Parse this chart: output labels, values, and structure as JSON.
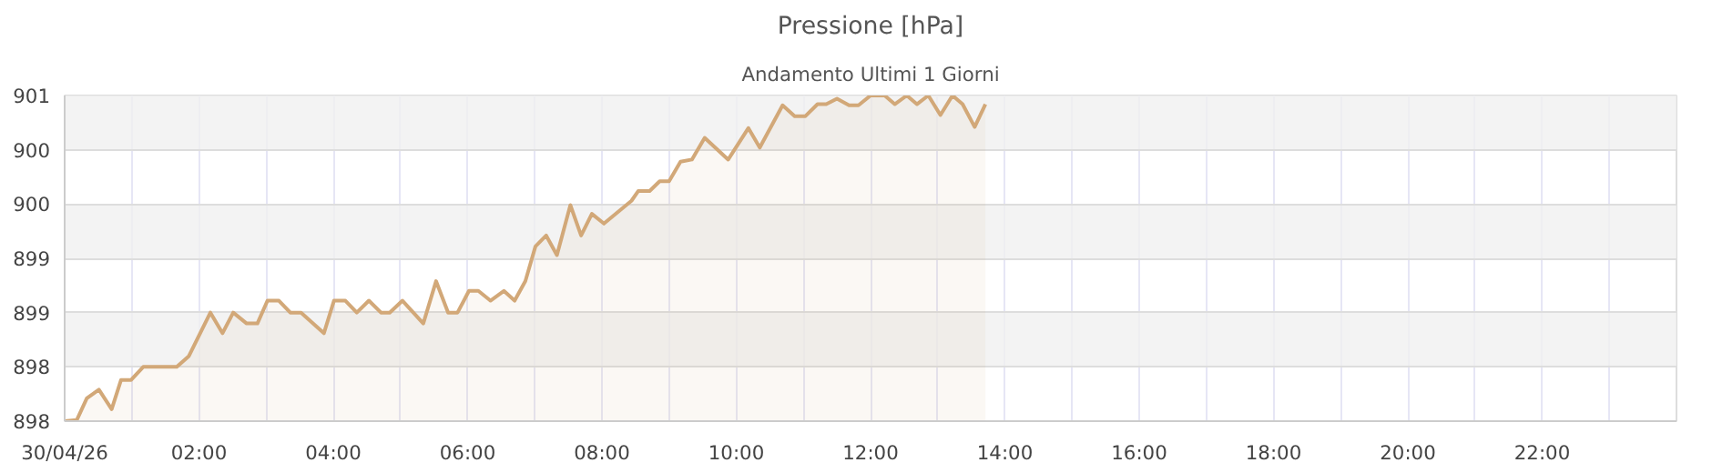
{
  "chart_data": {
    "type": "area",
    "title": "Pressione [hPa]",
    "subtitle": "Andamento Ultimi 1 Giorni",
    "x": [
      0,
      0.18,
      0.33,
      0.51,
      0.7,
      0.84,
      0.99,
      1.17,
      1.67,
      1.85,
      2.17,
      2.35,
      2.51,
      2.71,
      2.87,
      3.02,
      3.19,
      3.36,
      3.52,
      3.86,
      4.01,
      4.18,
      4.35,
      4.53,
      4.71,
      4.84,
      5.03,
      5.34,
      5.53,
      5.71,
      5.85,
      6.02,
      6.16,
      6.34,
      6.54,
      6.7,
      6.86,
      7.01,
      7.17,
      7.33,
      7.53,
      7.69,
      7.85,
      8.03,
      8.44,
      8.54,
      8.71,
      8.86,
      9.0,
      9.17,
      9.34,
      9.53,
      9.88,
      10.18,
      10.35,
      10.69,
      10.87,
      11.03,
      11.21,
      11.34,
      11.5,
      11.68,
      11.82,
      12.0,
      12.21,
      12.36,
      12.54,
      12.69,
      12.86,
      13.04,
      13.22,
      13.37,
      13.55,
      13.71
    ],
    "series": [
      {
        "color": "#d2a878",
        "values": [
          897.9,
          897.91,
          898.11,
          898.19,
          898.01,
          898.28,
          898.28,
          898.4,
          898.4,
          898.5,
          898.9,
          898.71,
          898.9,
          898.8,
          898.8,
          899.01,
          899.01,
          898.9,
          898.9,
          898.71,
          899.01,
          899.01,
          898.9,
          899.01,
          898.9,
          898.9,
          899.01,
          898.8,
          899.19,
          898.9,
          898.9,
          899.1,
          899.1,
          899.01,
          899.1,
          899.01,
          899.19,
          899.51,
          899.61,
          899.43,
          899.89,
          899.61,
          899.81,
          899.72,
          899.93,
          900.02,
          900.02,
          900.11,
          900.11,
          900.29,
          900.31,
          900.51,
          900.31,
          900.6,
          900.42,
          900.81,
          900.71,
          900.71,
          900.82,
          900.82,
          900.87,
          900.81,
          900.81,
          900.9,
          900.9,
          900.82,
          900.9,
          900.82,
          900.9,
          900.72,
          900.9,
          900.82,
          900.61,
          900.82
        ]
      }
    ],
    "xlim": [
      0,
      24
    ],
    "xticks": [
      {
        "value": 0,
        "label": "30/04/26"
      },
      {
        "value": 1,
        "label": null
      },
      {
        "value": 2,
        "label": "02:00"
      },
      {
        "value": 3,
        "label": null
      },
      {
        "value": 4,
        "label": "04:00"
      },
      {
        "value": 5,
        "label": null
      },
      {
        "value": 6,
        "label": "06:00"
      },
      {
        "value": 7,
        "label": null
      },
      {
        "value": 8,
        "label": "08:00"
      },
      {
        "value": 9,
        "label": null
      },
      {
        "value": 10,
        "label": "10:00"
      },
      {
        "value": 11,
        "label": null
      },
      {
        "value": 12,
        "label": "12:00"
      },
      {
        "value": 13,
        "label": null
      },
      {
        "value": 14,
        "label": "14:00"
      },
      {
        "value": 15,
        "label": null
      },
      {
        "value": 16,
        "label": "16:00"
      },
      {
        "value": 17,
        "label": null
      },
      {
        "value": 18,
        "label": "18:00"
      },
      {
        "value": 19,
        "label": null
      },
      {
        "value": 20,
        "label": "20:00"
      },
      {
        "value": 21,
        "label": null
      },
      {
        "value": 22,
        "label": "22:00"
      },
      {
        "value": 23,
        "label": null
      }
    ],
    "ylim": [
      897.9,
      900.9
    ],
    "yticks": [
      {
        "value": 897.9,
        "label": "898"
      },
      {
        "value": 898.4,
        "label": "898"
      },
      {
        "value": 898.9,
        "label": "899"
      },
      {
        "value": 899.4,
        "label": "899"
      },
      {
        "value": 899.9,
        "label": "900"
      },
      {
        "value": 900.4,
        "label": "900"
      },
      {
        "value": 900.9,
        "label": "901"
      }
    ],
    "grid": true
  }
}
